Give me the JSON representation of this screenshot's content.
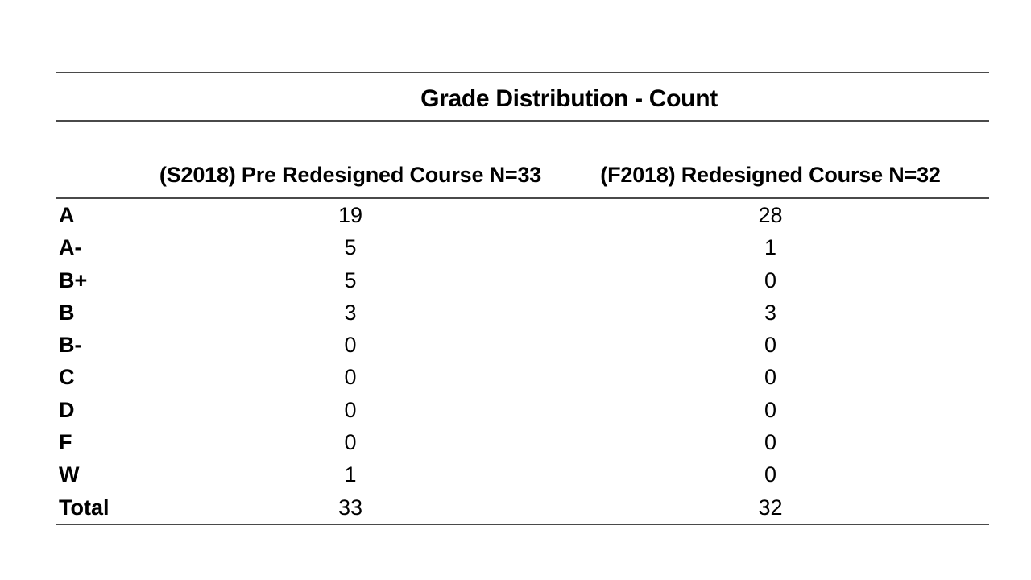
{
  "title": "Grade Distribution - Count",
  "table": {
    "columns": [
      "(S2018) Pre Redesigned Course N=33",
      "(F2018) Redesigned Course N=32"
    ],
    "rows": [
      {
        "label": "A",
        "pre": "19",
        "post": "28"
      },
      {
        "label": "A-",
        "pre": "5",
        "post": "1"
      },
      {
        "label": "B+",
        "pre": "5",
        "post": "0"
      },
      {
        "label": "B",
        "pre": "3",
        "post": "3"
      },
      {
        "label": "B-",
        "pre": "0",
        "post": "0"
      },
      {
        "label": "C",
        "pre": "0",
        "post": "0"
      },
      {
        "label": "D",
        "pre": "0",
        "post": "0"
      },
      {
        "label": "F",
        "pre": "0",
        "post": "0"
      },
      {
        "label": "W",
        "pre": "1",
        "post": "0"
      },
      {
        "label": "Total",
        "pre": "33",
        "post": "32"
      }
    ]
  },
  "chart_data": {
    "type": "table",
    "title": "Grade Distribution - Count",
    "categories": [
      "A",
      "A-",
      "B+",
      "B",
      "B-",
      "C",
      "D",
      "F",
      "W",
      "Total"
    ],
    "series": [
      {
        "name": "(S2018) Pre Redesigned Course N=33",
        "values": [
          19,
          5,
          5,
          3,
          0,
          0,
          0,
          0,
          1,
          33
        ]
      },
      {
        "name": "(F2018) Redesigned Course N=32",
        "values": [
          28,
          1,
          0,
          3,
          0,
          0,
          0,
          0,
          0,
          32
        ]
      }
    ],
    "legend_position": "top",
    "grid": false
  },
  "colors": {
    "background": "#ffffff",
    "rule_line": "#4a4a4a",
    "text": "#000000"
  }
}
